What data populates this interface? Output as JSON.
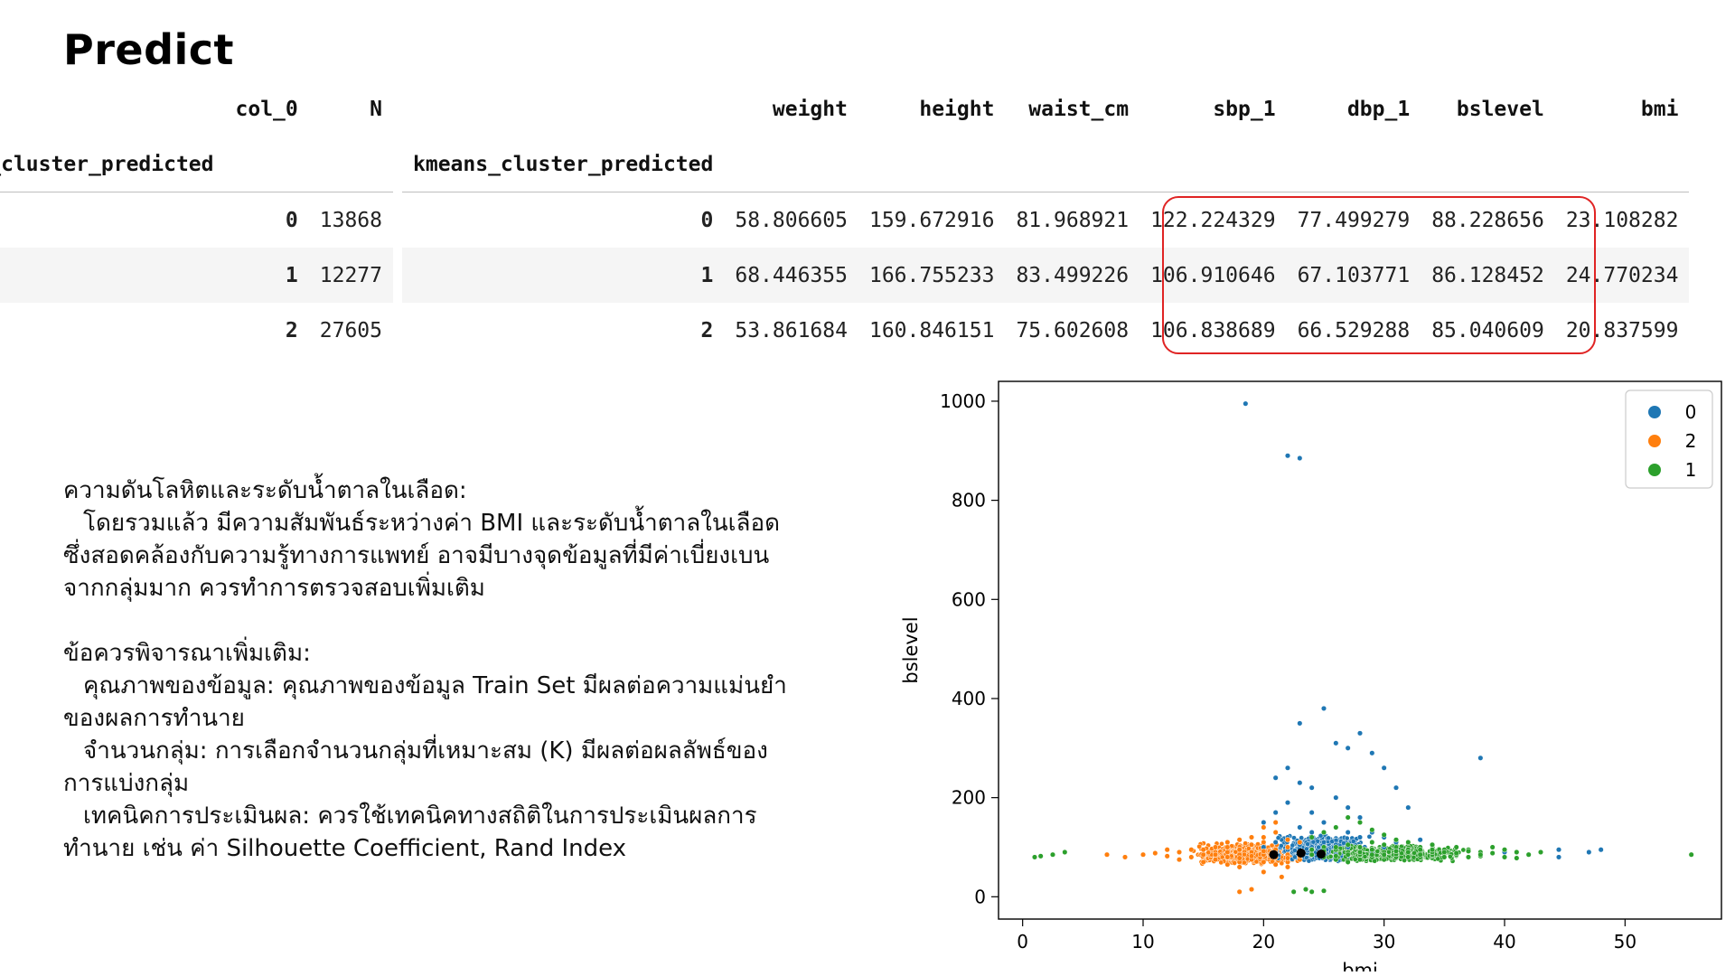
{
  "title": "Predict",
  "table1": {
    "header_row1": [
      "col_0",
      "N"
    ],
    "index_name": "eans_cluster_predicted",
    "rows": [
      {
        "idx": "0",
        "N": "13868"
      },
      {
        "idx": "1",
        "N": "12277"
      },
      {
        "idx": "2",
        "N": "27605"
      }
    ]
  },
  "table2": {
    "columns": [
      "weight",
      "height",
      "waist_cm",
      "sbp_1",
      "dbp_1",
      "bslevel",
      "bmi"
    ],
    "index_name": "kmeans_cluster_predicted",
    "rows": [
      {
        "idx": "0",
        "values": [
          "58.806605",
          "159.672916",
          "81.968921",
          "122.224329",
          "77.499279",
          "88.228656",
          "23.108282"
        ]
      },
      {
        "idx": "1",
        "values": [
          "68.446355",
          "166.755233",
          "83.499226",
          "106.910646",
          "67.103771",
          "86.128452",
          "24.770234"
        ]
      },
      {
        "idx": "2",
        "values": [
          "53.861684",
          "160.846151",
          "75.602608",
          "106.838689",
          "66.529288",
          "85.040609",
          "20.837599"
        ]
      }
    ]
  },
  "notes": {
    "section1_heading": "ความดันโลหิตและระดับน้ำตาลในเลือด:",
    "section1_line1": "โดยรวมแล้ว มีความสัมพันธ์ระหว่างค่า BMI และระดับน้ำตาลในเลือด",
    "section1_line2": "ซึ่งสอดคล้องกับความรู้ทางการแพทย์ อาจมีบางจุดข้อมูลที่มีค่าเบี่ยงเบน",
    "section1_line3": "จากกลุ่มมาก ควรทำการตรวจสอบเพิ่มเติม",
    "section2_heading": "ข้อควรพิจารณาเพิ่มเติม:",
    "item1_line1": "คุณภาพของข้อมูล: คุณภาพของข้อมูล Train Set มีผลต่อความแม่นยำ",
    "item1_line2": "ของผลการทำนาย",
    "item2_line1": "จำนวนกลุ่ม: การเลือกจำนวนกลุ่มที่เหมาะสม (K) มีผลต่อผลลัพธ์ของ",
    "item2_line2": "การแบ่งกลุ่ม",
    "item3_line1": "เทคนิคการประเมินผล: ควรใช้เทคนิคทางสถิติในการประเมินผลการ",
    "item3_line2": "ทำนาย เช่น ค่า Silhouette Coefficient, Rand Index"
  },
  "chart_data": {
    "type": "scatter",
    "xlabel": "bmi",
    "ylabel": "bslevel",
    "xlim": [
      -2,
      58
    ],
    "ylim": [
      -45,
      1040
    ],
    "xticks": [
      0,
      10,
      20,
      30,
      40,
      50
    ],
    "yticks": [
      0,
      200,
      400,
      600,
      800,
      1000
    ],
    "legend_position": "top-right",
    "series": [
      {
        "name": "0",
        "color": "#1f77b4",
        "points": [
          [
            18.5,
            995
          ],
          [
            22,
            890
          ],
          [
            23,
            885
          ],
          [
            21,
            240
          ],
          [
            22,
            260
          ],
          [
            23,
            230
          ],
          [
            24,
            220
          ],
          [
            25,
            380
          ],
          [
            23,
            350
          ],
          [
            26,
            310
          ],
          [
            27,
            300
          ],
          [
            28,
            330
          ],
          [
            29,
            290
          ],
          [
            30,
            260
          ],
          [
            31,
            220
          ],
          [
            32,
            180
          ],
          [
            38,
            280
          ],
          [
            20,
            150
          ],
          [
            21,
            170
          ],
          [
            22,
            190
          ],
          [
            24,
            170
          ],
          [
            26,
            200
          ],
          [
            27,
            180
          ],
          [
            28,
            160
          ],
          [
            25,
            150
          ],
          [
            23,
            140
          ],
          [
            22,
            120
          ],
          [
            24,
            130
          ],
          [
            26,
            140
          ],
          [
            27,
            130
          ],
          [
            28,
            120
          ],
          [
            29,
            130
          ],
          [
            30,
            120
          ],
          [
            31,
            110
          ],
          [
            33,
            115
          ],
          [
            34,
            105
          ],
          [
            36,
            100
          ],
          [
            21,
            110
          ],
          [
            20,
            100
          ],
          [
            22,
            100
          ],
          [
            23,
            105
          ],
          [
            24,
            100
          ],
          [
            25,
            110
          ],
          [
            26,
            105
          ],
          [
            27,
            100
          ],
          [
            28,
            100
          ],
          [
            29,
            95
          ],
          [
            30,
            100
          ],
          [
            31,
            95
          ],
          [
            44.5,
            95
          ],
          [
            44.5,
            80
          ],
          [
            48,
            95
          ],
          [
            47,
            90
          ],
          [
            40,
            90
          ],
          [
            42,
            85
          ],
          [
            21,
            90
          ],
          [
            22,
            85
          ],
          [
            23,
            90
          ],
          [
            24,
            85
          ],
          [
            25,
            90
          ],
          [
            26,
            85
          ],
          [
            27,
            90
          ],
          [
            28,
            85
          ],
          [
            29,
            88
          ],
          [
            30,
            84
          ],
          [
            22,
            95
          ],
          [
            24,
            95
          ],
          [
            26,
            95
          ]
        ]
      },
      {
        "name": "2",
        "color": "#ff7f0e",
        "points": [
          [
            7,
            85
          ],
          [
            8.5,
            80
          ],
          [
            10,
            85
          ],
          [
            12,
            82
          ],
          [
            13,
            90
          ],
          [
            14,
            80
          ],
          [
            15,
            85
          ],
          [
            15,
            95
          ],
          [
            16,
            90
          ],
          [
            16,
            75
          ],
          [
            17,
            100
          ],
          [
            17,
            80
          ],
          [
            18,
            85
          ],
          [
            18,
            95
          ],
          [
            18,
            70
          ],
          [
            19,
            120
          ],
          [
            19,
            90
          ],
          [
            19,
            75
          ],
          [
            20,
            110
          ],
          [
            20,
            85
          ],
          [
            20,
            70
          ],
          [
            20,
            140
          ],
          [
            21,
            95
          ],
          [
            21,
            80
          ],
          [
            21,
            65
          ],
          [
            22,
            100
          ],
          [
            22,
            85
          ],
          [
            22,
            70
          ],
          [
            23,
            90
          ],
          [
            23,
            75
          ],
          [
            16,
            100
          ],
          [
            17,
            110
          ],
          [
            18,
            115
          ],
          [
            19,
            105
          ],
          [
            20,
            120
          ],
          [
            21,
            130
          ],
          [
            21,
            150
          ],
          [
            22,
            60
          ],
          [
            20,
            50
          ],
          [
            18,
            60
          ],
          [
            17,
            65
          ],
          [
            19,
            15
          ],
          [
            18,
            10
          ],
          [
            21.5,
            40
          ],
          [
            15,
            70
          ],
          [
            14,
            95
          ],
          [
            13,
            75
          ],
          [
            12,
            95
          ],
          [
            11,
            88
          ],
          [
            22,
            115
          ],
          [
            23,
            110
          ],
          [
            16,
            85
          ],
          [
            17,
            90
          ],
          [
            18,
            78
          ],
          [
            19,
            82
          ],
          [
            20,
            92
          ],
          [
            21,
            88
          ],
          [
            22,
            78
          ],
          [
            23,
            82
          ]
        ]
      },
      {
        "name": "1",
        "color": "#2ca02c",
        "points": [
          [
            1,
            80
          ],
          [
            1.5,
            82
          ],
          [
            2.5,
            85
          ],
          [
            3.5,
            90
          ],
          [
            22.5,
            10
          ],
          [
            24,
            10
          ],
          [
            25,
            12
          ],
          [
            23.5,
            15
          ],
          [
            24,
            120
          ],
          [
            25,
            130
          ],
          [
            26,
            140
          ],
          [
            27,
            160
          ],
          [
            28,
            150
          ],
          [
            29,
            135
          ],
          [
            30,
            125
          ],
          [
            31,
            115
          ],
          [
            32,
            110
          ],
          [
            33,
            100
          ],
          [
            34,
            105
          ],
          [
            35,
            95
          ],
          [
            36,
            100
          ],
          [
            37,
            95
          ],
          [
            38,
            90
          ],
          [
            39,
            100
          ],
          [
            40,
            95
          ],
          [
            41,
            90
          ],
          [
            42,
            85
          ],
          [
            43,
            90
          ],
          [
            55.5,
            85
          ],
          [
            25,
            100
          ],
          [
            26,
            95
          ],
          [
            27,
            90
          ],
          [
            28,
            85
          ],
          [
            29,
            80
          ],
          [
            30,
            75
          ],
          [
            31,
            80
          ],
          [
            32,
            85
          ],
          [
            33,
            80
          ],
          [
            34,
            85
          ],
          [
            35,
            80
          ],
          [
            36,
            85
          ],
          [
            37,
            80
          ],
          [
            38,
            82
          ],
          [
            25,
            80
          ],
          [
            26,
            75
          ],
          [
            27,
            70
          ],
          [
            28,
            75
          ],
          [
            29,
            95
          ],
          [
            30,
            90
          ],
          [
            31,
            88
          ],
          [
            32,
            92
          ],
          [
            33,
            88
          ],
          [
            34,
            90
          ],
          [
            24,
            85
          ],
          [
            25,
            88
          ],
          [
            26,
            82
          ],
          [
            27,
            85
          ],
          [
            28,
            90
          ],
          [
            29,
            85
          ],
          [
            30,
            82
          ],
          [
            31,
            86
          ],
          [
            32,
            80
          ],
          [
            24,
            95
          ],
          [
            25,
            92
          ],
          [
            26,
            100
          ],
          [
            27,
            105
          ],
          [
            28,
            100
          ],
          [
            29,
            110
          ],
          [
            30,
            105
          ],
          [
            31,
            100
          ],
          [
            32,
            95
          ],
          [
            33,
            95
          ],
          [
            35,
            90
          ],
          [
            36,
            88
          ],
          [
            37,
            92
          ],
          [
            38,
            85
          ],
          [
            39,
            88
          ],
          [
            40,
            80
          ],
          [
            41,
            78
          ],
          [
            30,
            85
          ],
          [
            31,
            92
          ],
          [
            32,
            90
          ],
          [
            33,
            85
          ],
          [
            34,
            95
          ]
        ]
      }
    ],
    "centroids": {
      "color": "#000000",
      "points": [
        [
          20.84,
          85.04
        ],
        [
          23.11,
          88.23
        ],
        [
          24.77,
          86.13
        ]
      ]
    }
  },
  "colors": {
    "highlight_border": "#e02424",
    "row_band": "#f5f5f5"
  }
}
